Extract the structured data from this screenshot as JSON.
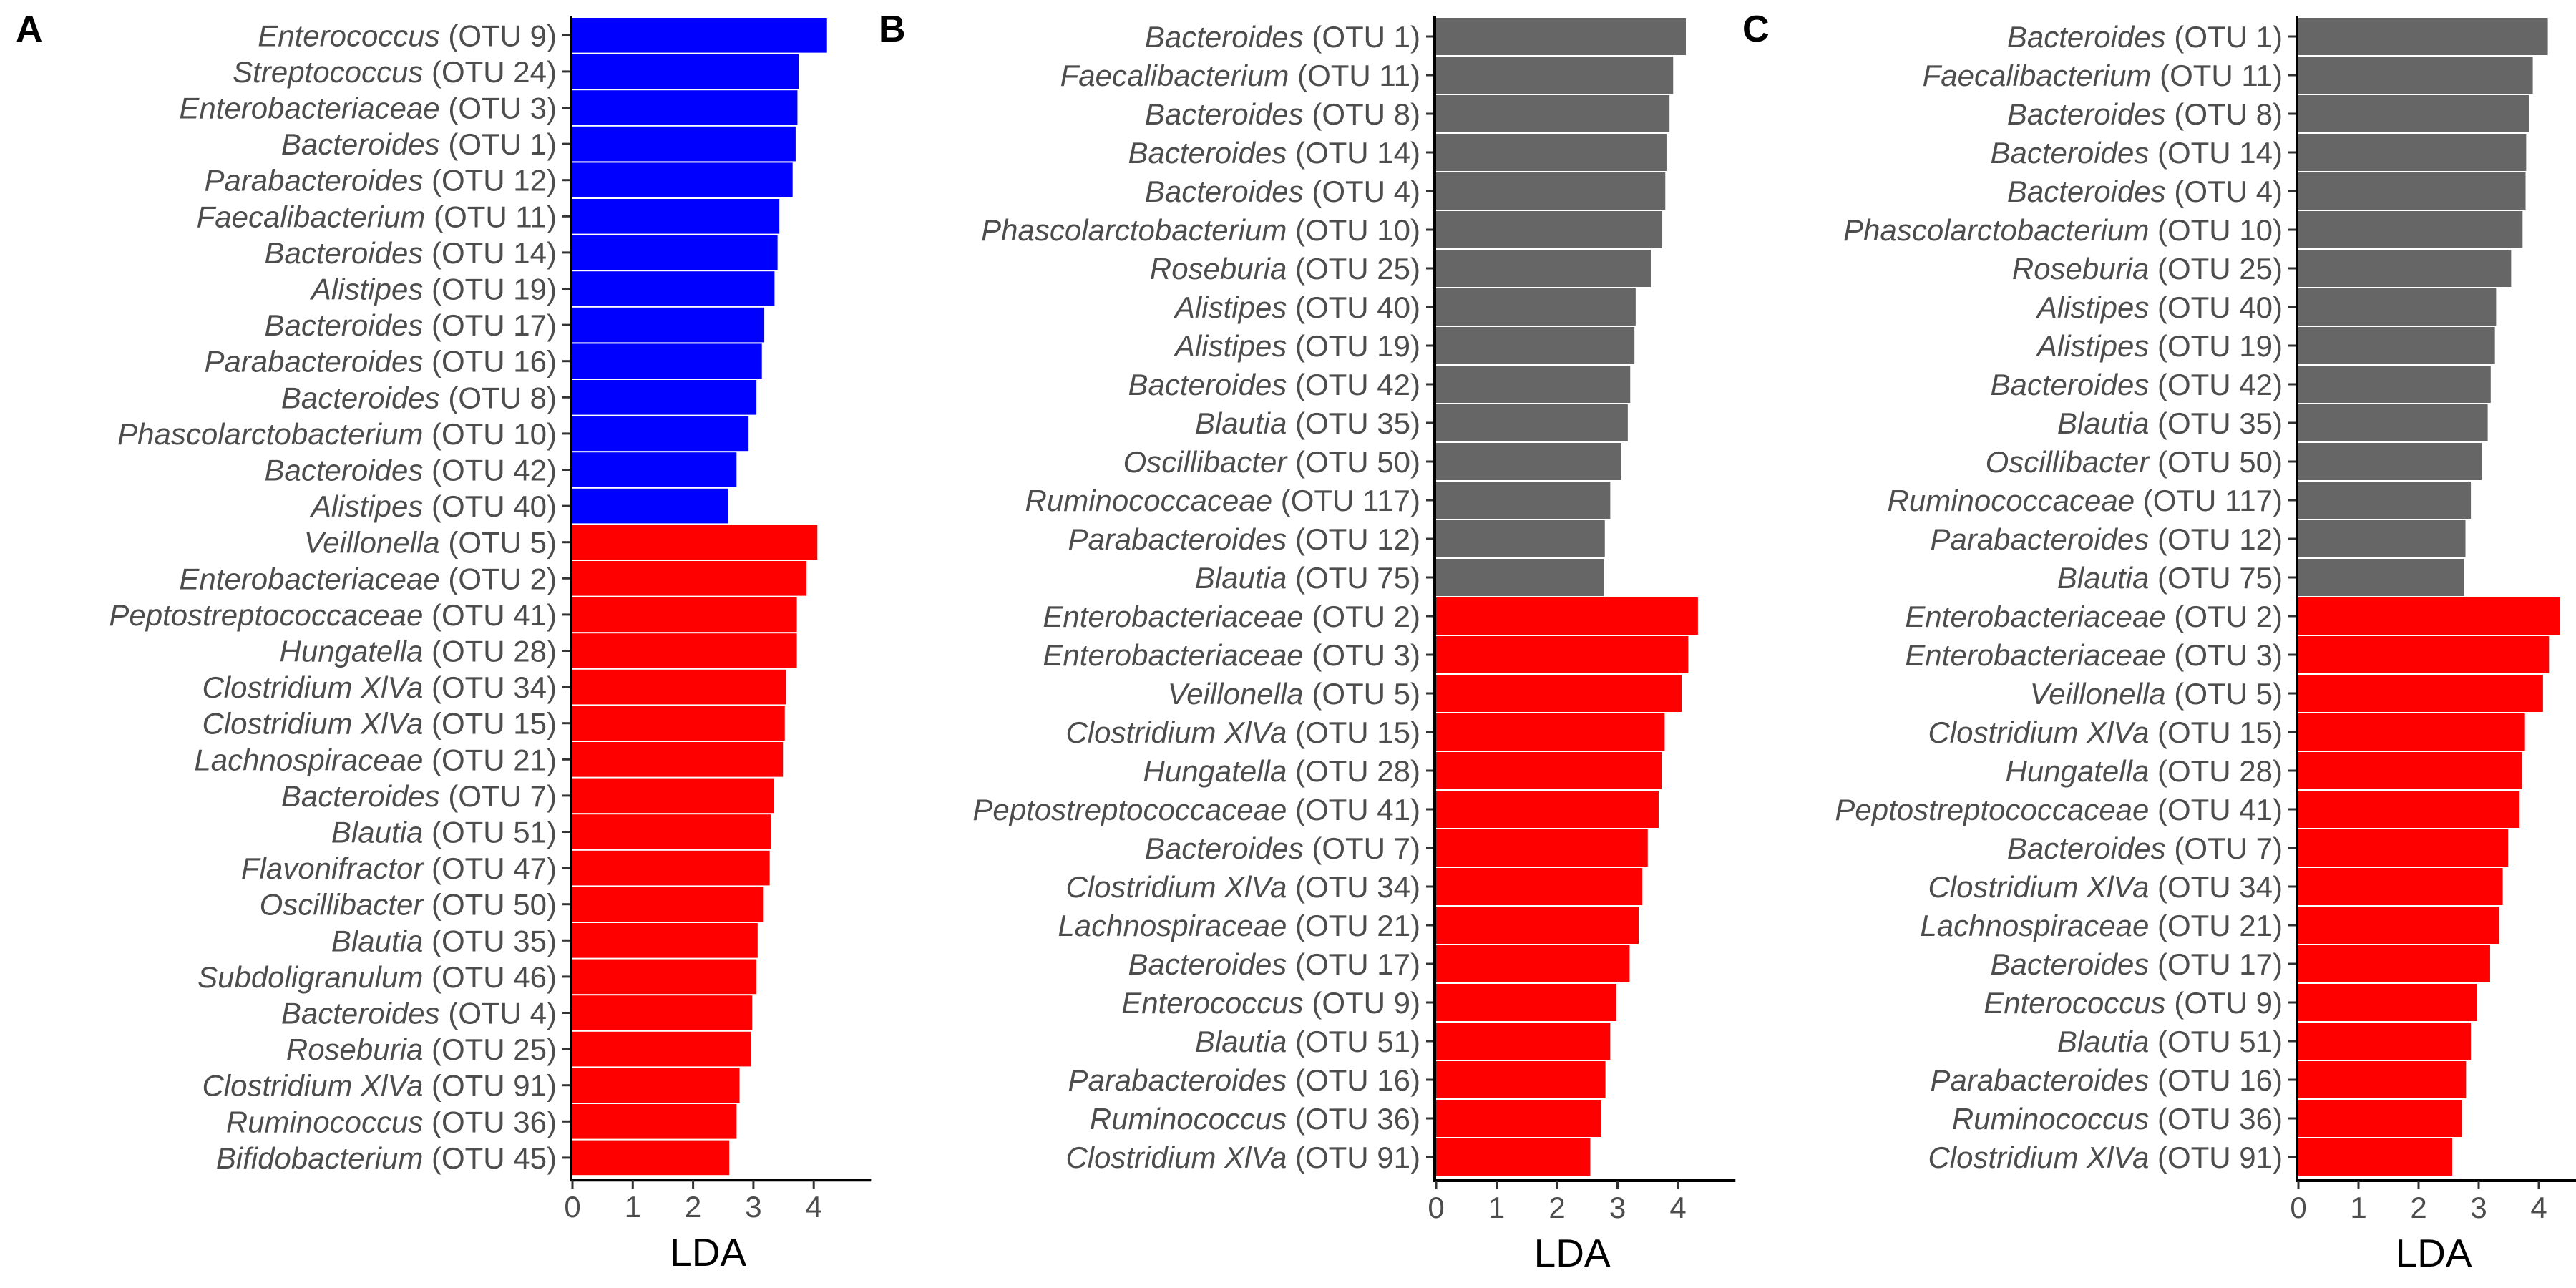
{
  "chart_data": [
    {
      "panel_label": "A",
      "type": "bar",
      "orientation": "horizontal",
      "xlabel": "LDA",
      "xlim": [
        0,
        4.5
      ],
      "xticks": [
        "0",
        "1",
        "2",
        "3",
        "4"
      ],
      "grid": false,
      "legend": "none",
      "colors": {
        "blue": "#0000FF",
        "red": "#FF0000"
      },
      "bars": [
        {
          "genus": "Enterococcus",
          "otu": "(OTU 9)",
          "value": 4.22,
          "color": "blue"
        },
        {
          "genus": "Streptococcus",
          "otu": "(OTU 24)",
          "value": 3.75,
          "color": "blue"
        },
        {
          "genus": "Enterobacteriaceae",
          "otu": "(OTU 3)",
          "value": 3.73,
          "color": "blue"
        },
        {
          "genus": "Bacteroides",
          "otu": "(OTU 1)",
          "value": 3.7,
          "color": "blue"
        },
        {
          "genus": "Parabacteroides",
          "otu": "(OTU 12)",
          "value": 3.65,
          "color": "blue"
        },
        {
          "genus": "Faecalibacterium",
          "otu": "(OTU 11)",
          "value": 3.43,
          "color": "blue"
        },
        {
          "genus": "Bacteroides",
          "otu": "(OTU 14)",
          "value": 3.4,
          "color": "blue"
        },
        {
          "genus": "Alistipes",
          "otu": "(OTU 19)",
          "value": 3.35,
          "color": "blue"
        },
        {
          "genus": "Bacteroides",
          "otu": "(OTU 17)",
          "value": 3.18,
          "color": "blue"
        },
        {
          "genus": "Parabacteroides",
          "otu": "(OTU 16)",
          "value": 3.14,
          "color": "blue"
        },
        {
          "genus": "Bacteroides",
          "otu": "(OTU 8)",
          "value": 3.05,
          "color": "blue"
        },
        {
          "genus": "Phascolarctobacterium",
          "otu": "(OTU 10)",
          "value": 2.92,
          "color": "blue"
        },
        {
          "genus": "Bacteroides",
          "otu": "(OTU 42)",
          "value": 2.72,
          "color": "blue"
        },
        {
          "genus": "Alistipes",
          "otu": "(OTU 40)",
          "value": 2.58,
          "color": "blue"
        },
        {
          "genus": "Veillonella",
          "otu": "(OTU 5)",
          "value": 4.06,
          "color": "red"
        },
        {
          "genus": "Enterobacteriaceae",
          "otu": "(OTU 2)",
          "value": 3.88,
          "color": "red"
        },
        {
          "genus": "Peptostreptococcaceae",
          "otu": "(OTU 41)",
          "value": 3.72,
          "color": "red"
        },
        {
          "genus": "Hungatella",
          "otu": "(OTU 28)",
          "value": 3.72,
          "color": "red"
        },
        {
          "genus": "Clostridium XlVa",
          "otu": "(OTU 34)",
          "value": 3.54,
          "color": "red"
        },
        {
          "genus": "Clostridium XlVa",
          "otu": "(OTU 15)",
          "value": 3.52,
          "color": "red"
        },
        {
          "genus": "Lachnospiraceae",
          "otu": "(OTU 21)",
          "value": 3.49,
          "color": "red"
        },
        {
          "genus": "Bacteroides",
          "otu": "(OTU 7)",
          "value": 3.34,
          "color": "red"
        },
        {
          "genus": "Blautia",
          "otu": "(OTU 51)",
          "value": 3.29,
          "color": "red"
        },
        {
          "genus": "Flavonifractor",
          "otu": "(OTU 47)",
          "value": 3.27,
          "color": "red"
        },
        {
          "genus": "Oscillibacter",
          "otu": "(OTU 50)",
          "value": 3.17,
          "color": "red"
        },
        {
          "genus": "Blautia",
          "otu": "(OTU 35)",
          "value": 3.07,
          "color": "red"
        },
        {
          "genus": "Subdoligranulum",
          "otu": "(OTU 46)",
          "value": 3.05,
          "color": "red"
        },
        {
          "genus": "Bacteroides",
          "otu": "(OTU 4)",
          "value": 2.98,
          "color": "red"
        },
        {
          "genus": "Roseburia",
          "otu": "(OTU 25)",
          "value": 2.96,
          "color": "red"
        },
        {
          "genus": "Clostridium XlVa",
          "otu": "(OTU 91)",
          "value": 2.77,
          "color": "red"
        },
        {
          "genus": "Ruminococcus",
          "otu": "(OTU 36)",
          "value": 2.72,
          "color": "red"
        },
        {
          "genus": "Bifidobacterium",
          "otu": "(OTU 45)",
          "value": 2.6,
          "color": "red"
        }
      ]
    },
    {
      "panel_label": "B",
      "type": "bar",
      "orientation": "horizontal",
      "xlabel": "LDA",
      "xlim": [
        0,
        4.5
      ],
      "xticks": [
        "0",
        "1",
        "2",
        "3",
        "4"
      ],
      "grid": false,
      "legend": "none",
      "colors": {
        "grey": "#666666",
        "red": "#FF0000"
      },
      "bars": [
        {
          "genus": "Bacteroides",
          "otu": "(OTU 1)",
          "value": 4.13,
          "color": "grey"
        },
        {
          "genus": "Faecalibacterium",
          "otu": "(OTU 11)",
          "value": 3.92,
          "color": "grey"
        },
        {
          "genus": "Bacteroides",
          "otu": "(OTU 8)",
          "value": 3.86,
          "color": "grey"
        },
        {
          "genus": "Bacteroides",
          "otu": "(OTU 14)",
          "value": 3.81,
          "color": "grey"
        },
        {
          "genus": "Bacteroides",
          "otu": "(OTU 4)",
          "value": 3.79,
          "color": "grey"
        },
        {
          "genus": "Phascolarctobacterium",
          "otu": "(OTU 10)",
          "value": 3.74,
          "color": "grey"
        },
        {
          "genus": "Roseburia",
          "otu": "(OTU 25)",
          "value": 3.55,
          "color": "grey"
        },
        {
          "genus": "Alistipes",
          "otu": "(OTU 40)",
          "value": 3.3,
          "color": "grey"
        },
        {
          "genus": "Alistipes",
          "otu": "(OTU 19)",
          "value": 3.28,
          "color": "grey"
        },
        {
          "genus": "Bacteroides",
          "otu": "(OTU 42)",
          "value": 3.21,
          "color": "grey"
        },
        {
          "genus": "Blautia",
          "otu": "(OTU 35)",
          "value": 3.17,
          "color": "grey"
        },
        {
          "genus": "Oscillibacter",
          "otu": "(OTU 50)",
          "value": 3.06,
          "color": "grey"
        },
        {
          "genus": "Ruminococcaceae",
          "otu": "(OTU 117)",
          "value": 2.88,
          "color": "grey"
        },
        {
          "genus": "Parabacteroides",
          "otu": "(OTU 12)",
          "value": 2.79,
          "color": "grey"
        },
        {
          "genus": "Blautia",
          "otu": "(OTU 75)",
          "value": 2.77,
          "color": "grey"
        },
        {
          "genus": "Enterobacteriaceae",
          "otu": "(OTU 2)",
          "value": 4.33,
          "color": "red"
        },
        {
          "genus": "Enterobacteriaceae",
          "otu": "(OTU 3)",
          "value": 4.17,
          "color": "red"
        },
        {
          "genus": "Veillonella",
          "otu": "(OTU 5)",
          "value": 4.06,
          "color": "red"
        },
        {
          "genus": "Clostridium XlVa",
          "otu": "(OTU 15)",
          "value": 3.78,
          "color": "red"
        },
        {
          "genus": "Hungatella",
          "otu": "(OTU 28)",
          "value": 3.73,
          "color": "red"
        },
        {
          "genus": "Peptostreptococcaceae",
          "otu": "(OTU 41)",
          "value": 3.68,
          "color": "red"
        },
        {
          "genus": "Bacteroides",
          "otu": "(OTU 7)",
          "value": 3.5,
          "color": "red"
        },
        {
          "genus": "Clostridium XlVa",
          "otu": "(OTU 34)",
          "value": 3.41,
          "color": "red"
        },
        {
          "genus": "Lachnospiraceae",
          "otu": "(OTU 21)",
          "value": 3.35,
          "color": "red"
        },
        {
          "genus": "Bacteroides",
          "otu": "(OTU 17)",
          "value": 3.2,
          "color": "red"
        },
        {
          "genus": "Enterococcus",
          "otu": "(OTU 9)",
          "value": 2.98,
          "color": "red"
        },
        {
          "genus": "Blautia",
          "otu": "(OTU 51)",
          "value": 2.88,
          "color": "red"
        },
        {
          "genus": "Parabacteroides",
          "otu": "(OTU 16)",
          "value": 2.8,
          "color": "red"
        },
        {
          "genus": "Ruminococcus",
          "otu": "(OTU 36)",
          "value": 2.73,
          "color": "red"
        },
        {
          "genus": "Clostridium XlVa",
          "otu": "(OTU 91)",
          "value": 2.55,
          "color": "red"
        }
      ]
    },
    {
      "panel_label": "C",
      "type": "bar",
      "orientation": "horizontal",
      "xlabel": "LDA",
      "xlim": [
        0,
        4.5
      ],
      "xticks": [
        "0",
        "1",
        "2",
        "3",
        "4"
      ],
      "grid": false,
      "legend": "none",
      "colors": {
        "grey": "#666666",
        "red": "#FF0000"
      },
      "bars": [
        {
          "genus": "Bacteroides",
          "otu": "(OTU 1)",
          "value": 4.15,
          "color": "grey"
        },
        {
          "genus": "Faecalibacterium",
          "otu": "(OTU 11)",
          "value": 3.9,
          "color": "grey"
        },
        {
          "genus": "Bacteroides",
          "otu": "(OTU 8)",
          "value": 3.84,
          "color": "grey"
        },
        {
          "genus": "Bacteroides",
          "otu": "(OTU 14)",
          "value": 3.79,
          "color": "grey"
        },
        {
          "genus": "Bacteroides",
          "otu": "(OTU 4)",
          "value": 3.78,
          "color": "grey"
        },
        {
          "genus": "Phascolarctobacterium",
          "otu": "(OTU 10)",
          "value": 3.73,
          "color": "grey"
        },
        {
          "genus": "Roseburia",
          "otu": "(OTU 25)",
          "value": 3.54,
          "color": "grey"
        },
        {
          "genus": "Alistipes",
          "otu": "(OTU 40)",
          "value": 3.29,
          "color": "grey"
        },
        {
          "genus": "Alistipes",
          "otu": "(OTU 19)",
          "value": 3.27,
          "color": "grey"
        },
        {
          "genus": "Bacteroides",
          "otu": "(OTU 42)",
          "value": 3.2,
          "color": "grey"
        },
        {
          "genus": "Blautia",
          "otu": "(OTU 35)",
          "value": 3.15,
          "color": "grey"
        },
        {
          "genus": "Oscillibacter",
          "otu": "(OTU 50)",
          "value": 3.05,
          "color": "grey"
        },
        {
          "genus": "Ruminococcaceae",
          "otu": "(OTU 117)",
          "value": 2.87,
          "color": "grey"
        },
        {
          "genus": "Parabacteroides",
          "otu": "(OTU 12)",
          "value": 2.78,
          "color": "grey"
        },
        {
          "genus": "Blautia",
          "otu": "(OTU 75)",
          "value": 2.76,
          "color": "grey"
        },
        {
          "genus": "Enterobacteriaceae",
          "otu": "(OTU 2)",
          "value": 4.35,
          "color": "red"
        },
        {
          "genus": "Enterobacteriaceae",
          "otu": "(OTU 3)",
          "value": 4.17,
          "color": "red"
        },
        {
          "genus": "Veillonella",
          "otu": "(OTU 5)",
          "value": 4.07,
          "color": "red"
        },
        {
          "genus": "Clostridium XlVa",
          "otu": "(OTU 15)",
          "value": 3.77,
          "color": "red"
        },
        {
          "genus": "Hungatella",
          "otu": "(OTU 28)",
          "value": 3.72,
          "color": "red"
        },
        {
          "genus": "Peptostreptococcaceae",
          "otu": "(OTU 41)",
          "value": 3.68,
          "color": "red"
        },
        {
          "genus": "Bacteroides",
          "otu": "(OTU 7)",
          "value": 3.49,
          "color": "red"
        },
        {
          "genus": "Clostridium XlVa",
          "otu": "(OTU 34)",
          "value": 3.4,
          "color": "red"
        },
        {
          "genus": "Lachnospiraceae",
          "otu": "(OTU 21)",
          "value": 3.34,
          "color": "red"
        },
        {
          "genus": "Bacteroides",
          "otu": "(OTU 17)",
          "value": 3.19,
          "color": "red"
        },
        {
          "genus": "Enterococcus",
          "otu": "(OTU 9)",
          "value": 2.97,
          "color": "red"
        },
        {
          "genus": "Blautia",
          "otu": "(OTU 51)",
          "value": 2.87,
          "color": "red"
        },
        {
          "genus": "Parabacteroides",
          "otu": "(OTU 16)",
          "value": 2.79,
          "color": "red"
        },
        {
          "genus": "Ruminococcus",
          "otu": "(OTU 36)",
          "value": 2.72,
          "color": "red"
        },
        {
          "genus": "Clostridium XlVa",
          "otu": "(OTU 91)",
          "value": 2.56,
          "color": "red"
        }
      ]
    }
  ]
}
